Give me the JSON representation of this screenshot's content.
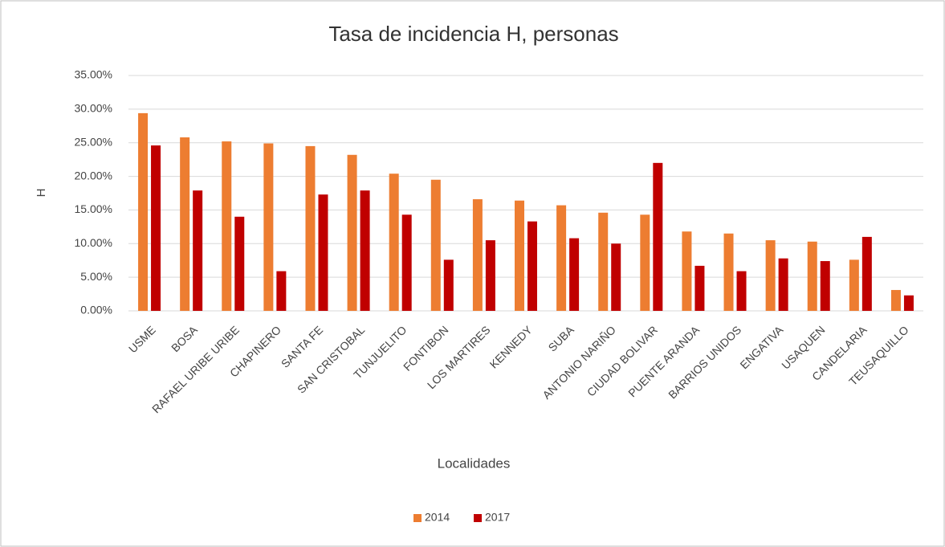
{
  "chart_data": {
    "type": "bar",
    "title": "Tasa de incidencia H, personas",
    "x_label": "Localidades",
    "y_label": "H",
    "categories": [
      "USME",
      "BOSA",
      "RAFAEL URIBE URIBE",
      "CHAPINERO",
      "SANTA FE",
      "SAN CRISTOBAL",
      "TUNJUELITO",
      "FONTIBON",
      "LOS MARTIRES",
      "KENNEDY",
      "SUBA",
      "ANTONIO NARIÑO",
      "CIUDAD BOLIVAR",
      "PUENTE ARANDA",
      "BARRIOS UNIDOS",
      "ENGATIVA",
      "USAQUEN",
      "CANDELARIA",
      "TEUSAQUILLO"
    ],
    "series": [
      {
        "name": "2014",
        "color": "#ed7d31",
        "values": [
          29.4,
          25.8,
          25.2,
          24.9,
          24.5,
          23.2,
          20.4,
          19.5,
          16.6,
          16.4,
          15.7,
          14.6,
          14.3,
          11.8,
          11.5,
          10.5,
          10.3,
          7.6,
          3.1
        ]
      },
      {
        "name": "2017",
        "color": "#c00000",
        "values": [
          24.6,
          17.9,
          14.0,
          5.9,
          17.3,
          17.9,
          14.3,
          7.6,
          10.5,
          13.3,
          10.8,
          10.0,
          22.0,
          6.7,
          5.9,
          7.8,
          7.4,
          11.0,
          2.3
        ]
      }
    ],
    "ylim": [
      0,
      35
    ],
    "yticks": [
      {
        "value": 0,
        "label": "0.00%"
      },
      {
        "value": 5,
        "label": "5.00%"
      },
      {
        "value": 10,
        "label": "10.00%"
      },
      {
        "value": 15,
        "label": "15.00%"
      },
      {
        "value": 20,
        "label": "20.00%"
      },
      {
        "value": 25,
        "label": "25.00%"
      },
      {
        "value": 30,
        "label": "30.00%"
      },
      {
        "value": 35,
        "label": "35.00%"
      }
    ],
    "grid": true,
    "legend": "bottom"
  }
}
